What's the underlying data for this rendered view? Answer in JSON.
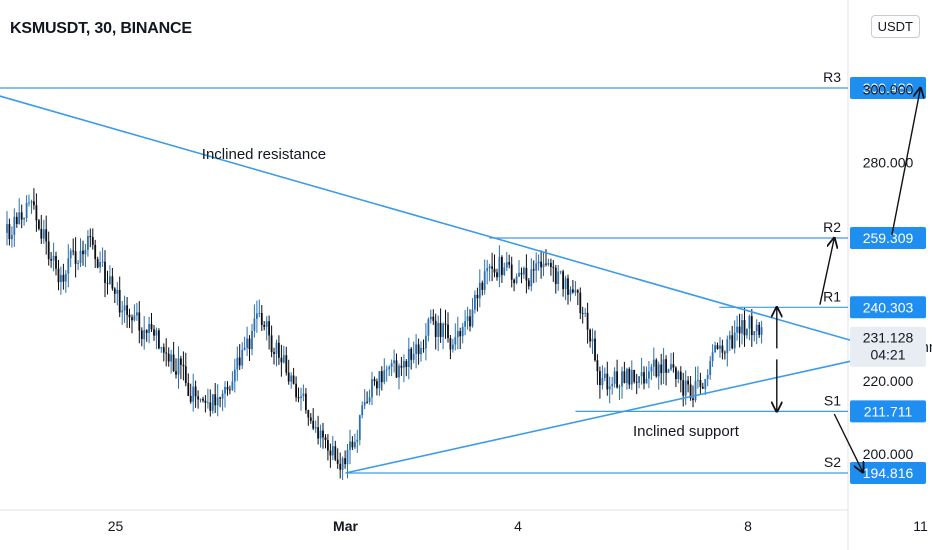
{
  "title": "KSMUSDT, 30, BINANCE",
  "currency": "USDT",
  "colors": {
    "up": "#2a6fb0",
    "down": "#0b0e14",
    "line": "#3d9be9",
    "label_bg": "#1f8ef1",
    "axis_text": "#131722"
  },
  "chart_data": {
    "type": "candlestick",
    "xaxis": {
      "ticks": [
        {
          "label": "25",
          "date": "2021-02-25"
        },
        {
          "label": "Mar",
          "date": "2021-03-01"
        },
        {
          "label": "4",
          "date": "2021-03-04"
        },
        {
          "label": "8",
          "date": "2021-03-08"
        },
        {
          "label": "11",
          "date": "2021-03-11"
        }
      ],
      "range": [
        "2021-02-22",
        "2021-03-13"
      ]
    },
    "yaxis": {
      "range": [
        186,
        316
      ],
      "ticks": [
        {
          "label": "300.000",
          "value": 300
        },
        {
          "label": "280.000",
          "value": 280
        },
        {
          "label": "220.000",
          "value": 220
        },
        {
          "label": "200.000",
          "value": 200
        }
      ]
    },
    "price_waypoints": [
      {
        "date": "2021-02-22",
        "value": 238
      },
      {
        "date": "2021-02-22T12:00",
        "value": 300
      },
      {
        "date": "2021-02-23",
        "value": 258
      },
      {
        "date": "2021-02-23T12:00",
        "value": 270
      },
      {
        "date": "2021-02-24",
        "value": 248
      },
      {
        "date": "2021-02-24T12:00",
        "value": 258
      },
      {
        "date": "2021-02-25",
        "value": 242
      },
      {
        "date": "2021-02-26",
        "value": 226
      },
      {
        "date": "2021-02-26T12:00",
        "value": 212
      },
      {
        "date": "2021-02-27",
        "value": 222
      },
      {
        "date": "2021-02-27T12:00",
        "value": 237
      },
      {
        "date": "2021-02-28",
        "value": 222
      },
      {
        "date": "2021-02-28T12:00",
        "value": 206
      },
      {
        "date": "2021-03-01",
        "value": 198
      },
      {
        "date": "2021-03-01T12:00",
        "value": 220
      },
      {
        "date": "2021-03-02",
        "value": 224
      },
      {
        "date": "2021-03-02T12:00",
        "value": 236
      },
      {
        "date": "2021-03-03",
        "value": 230
      },
      {
        "date": "2021-03-03T12:00",
        "value": 254
      },
      {
        "date": "2021-03-04",
        "value": 247
      },
      {
        "date": "2021-03-04T12:00",
        "value": 251
      },
      {
        "date": "2021-03-05",
        "value": 243
      },
      {
        "date": "2021-03-05T12:00",
        "value": 218
      },
      {
        "date": "2021-03-06",
        "value": 222
      },
      {
        "date": "2021-03-06T12:00",
        "value": 224
      },
      {
        "date": "2021-03-07",
        "value": 217
      },
      {
        "date": "2021-03-07T12:00",
        "value": 229
      },
      {
        "date": "2021-03-08",
        "value": 236
      },
      {
        "date": "2021-03-08T06:00",
        "value": 231
      }
    ],
    "current_price": {
      "value": 231.128,
      "label": "231.128",
      "countdown": "04:21"
    },
    "levels": [
      {
        "name": "R3",
        "value": 300.48,
        "label": "300.480"
      },
      {
        "name": "R2",
        "value": 259.309,
        "label": "259.309"
      },
      {
        "name": "R1",
        "value": 240.303,
        "label": "240.303"
      },
      {
        "name": "S1",
        "value": 211.711,
        "label": "211.711"
      },
      {
        "name": "S2",
        "value": 194.816,
        "label": "194.816"
      }
    ],
    "trendlines": [
      {
        "name": "Inclined resistance",
        "from": {
          "date": "2021-02-22T12:00",
          "value": 300.48
        },
        "to": {
          "date": "2021-03-10T12:00",
          "value": 228
        }
      },
      {
        "name": "Inclined support",
        "from": {
          "date": "2021-03-01",
          "value": 194.816
        },
        "to": {
          "date": "2021-03-10T12:00",
          "value": 228
        }
      }
    ],
    "annotations": [
      {
        "text": "Inclined resistance",
        "date": "2021-02-26T12:00",
        "value": 281
      },
      {
        "text": "Symmetrical triangle",
        "date": "2021-03-10T15:00",
        "value": 228
      },
      {
        "text": "Inclined support",
        "date": "2021-03-06",
        "value": 205
      }
    ],
    "arrows": [
      {
        "from": {
          "date": "2021-03-08T12:00",
          "value": 229
        },
        "to": {
          "date": "2021-03-08T12:00",
          "value": 240.3
        }
      },
      {
        "from": {
          "date": "2021-03-08T12:00",
          "value": 226
        },
        "to": {
          "date": "2021-03-08T12:00",
          "value": 211.7
        }
      },
      {
        "from": {
          "date": "2021-03-09T06:00",
          "value": 241
        },
        "to": {
          "date": "2021-03-09T12:00",
          "value": 259.3
        }
      },
      {
        "from": {
          "date": "2021-03-09T12:00",
          "value": 211
        },
        "to": {
          "date": "2021-03-10",
          "value": 195
        }
      },
      {
        "from": {
          "date": "2021-03-10T12:00",
          "value": 260
        },
        "to": {
          "date": "2021-03-11",
          "value": 300.5
        }
      }
    ]
  }
}
